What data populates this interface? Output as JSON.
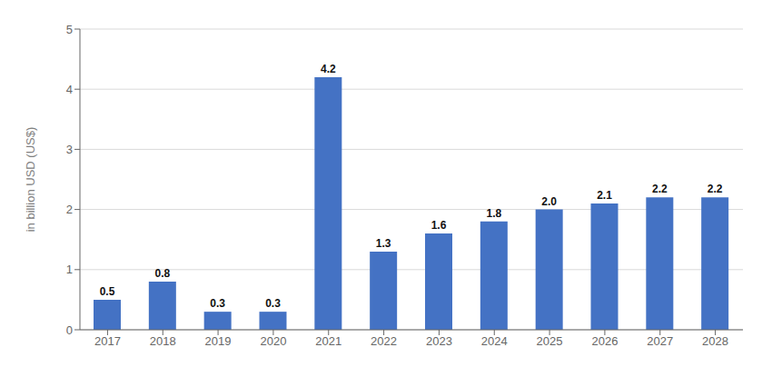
{
  "chart_data": {
    "type": "bar",
    "categories": [
      "2017",
      "2018",
      "2019",
      "2020",
      "2021",
      "2022",
      "2023",
      "2024",
      "2025",
      "2026",
      "2027",
      "2028"
    ],
    "values": [
      0.5,
      0.8,
      0.3,
      0.3,
      4.2,
      1.3,
      1.6,
      1.8,
      2.0,
      2.1,
      2.2,
      2.2
    ],
    "value_labels": [
      "0.5",
      "0.8",
      "0.3",
      "0.3",
      "4.2",
      "1.3",
      "1.6",
      "1.8",
      "2.0",
      "2.1",
      "2.2",
      "2.2"
    ],
    "color": "#4472c4",
    "ylabel": "in billion USD (US$)",
    "ylim": [
      0,
      5
    ],
    "yticks": [
      0,
      1,
      2,
      3,
      4,
      5
    ],
    "grid": true,
    "data_labels": true
  }
}
